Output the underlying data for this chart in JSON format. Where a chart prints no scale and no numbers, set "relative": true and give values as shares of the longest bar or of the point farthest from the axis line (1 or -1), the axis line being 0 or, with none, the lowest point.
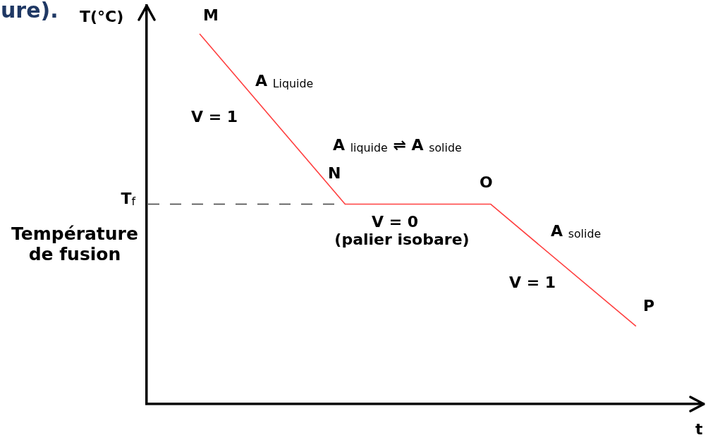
{
  "chart_data": {
    "type": "line",
    "title": "ure).",
    "xlabel": "t",
    "ylabel": "T(°C)",
    "categories": [
      null,
      null,
      null,
      null
    ],
    "relative": true,
    "values": [
      1,
      0.54,
      0.54,
      0.21
    ],
    "color": "#ff4040",
    "ref_lines": [
      {
        "axis": "y",
        "value": 0.54,
        "label": "T$_{f}$",
        "color": "#404040",
        "line_style": "dashed"
      }
    ],
    "annotations": [
      "M",
      "A $_{Liquide}$",
      "V = 1",
      "A $_{liquide}$ ⇌ A $_{solide}$",
      "N",
      "O",
      "V = 0",
      "(palier isobare)",
      "A $_{solide}$",
      "V = 1",
      "P",
      "Température de fusion"
    ]
  }
}
